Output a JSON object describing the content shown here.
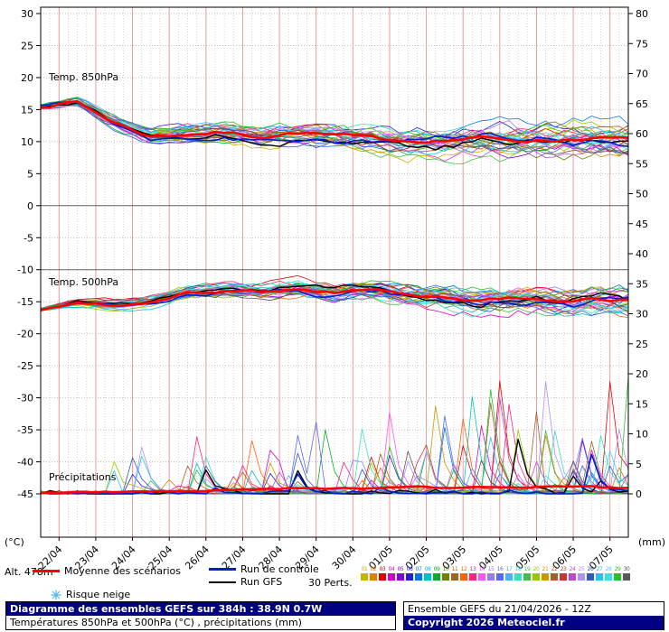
{
  "meta": {
    "alt_label": "Alt. 478m"
  },
  "legend": {
    "mean_label": "Moyenne des scénarios",
    "control_label": "Run de contrôle",
    "gfs_label": "Run GFS",
    "perts_label": "30 Perts.",
    "snow_label": "Risque neige",
    "mean_color": "#ff0000",
    "control_color": "#0020c8",
    "gfs_color": "#000000",
    "snow_icon_color": "#55b8f0",
    "pert_numbers": [
      "01",
      "02",
      "03",
      "04",
      "05",
      "06",
      "07",
      "08",
      "09",
      "10",
      "11",
      "12",
      "13",
      "14",
      "15",
      "16",
      "17",
      "18",
      "19",
      "20",
      "21",
      "22",
      "23",
      "24",
      "25",
      "26",
      "27",
      "28",
      "29",
      "30"
    ],
    "pert_colors": [
      "#c8b400",
      "#e08000",
      "#e00000",
      "#d800c8",
      "#8800e0",
      "#2020d0",
      "#0078e8",
      "#00c0c8",
      "#00b028",
      "#6e8400",
      "#a06420",
      "#ff6000",
      "#ff2080",
      "#ff50ff",
      "#9878ff",
      "#5868ff",
      "#48b0ff",
      "#38e0c0",
      "#40c048",
      "#98c800",
      "#c89800",
      "#aa5c2c",
      "#d03038",
      "#c048c8",
      "#ae90ff",
      "#3058c8",
      "#28c0f8",
      "#38e0e8",
      "#28c028",
      "#585858"
    ]
  },
  "footer": {
    "title": "Diagramme des ensembles GEFS sur 384h : 38.9N 0.7W",
    "subtitle": "Températures 850hPa et 500hPa (°C) , précipitations (mm)",
    "run_info": "Ensemble GEFS du 21/04/2026 - 12Z",
    "copyright": "Copyright 2026 Meteociel.fr",
    "bar_color": "#000080"
  },
  "chart_data": {
    "type": "line",
    "title": "Diagramme des ensembles GEFS sur 384h : 38.9N 0.7W",
    "x_labels": [
      "22/04",
      "23/04",
      "24/04",
      "25/04",
      "26/04",
      "27/04",
      "28/04",
      "29/04",
      "30/04",
      "01/05",
      "02/05",
      "03/05",
      "04/05",
      "05/05",
      "06/05",
      "07/05"
    ],
    "y_left_label": "(°C)",
    "y_right_label": "(mm)",
    "y_left_ticks": [
      30,
      25,
      20,
      15,
      10,
      5,
      0,
      -5,
      -10,
      -15,
      -20,
      -25,
      -30,
      -35,
      -40,
      -45
    ],
    "y_right_ticks": [
      80,
      75,
      70,
      65,
      60,
      55,
      50,
      45,
      40,
      35,
      30,
      25,
      20,
      15,
      10,
      5,
      0
    ],
    "n_members": 30,
    "sections": [
      {
        "label": "Temp. 850hPa",
        "unit": "°C",
        "mean_anchors": [
          15.5,
          16.2,
          13.0,
          10.8,
          11.2,
          11.4,
          10.8,
          11.4,
          11.0,
          10.6,
          10.2,
          10.2,
          10.6,
          10.2,
          10.2,
          10.6,
          10.4
        ],
        "spread_start": 0.4,
        "spread_end": 1.9
      },
      {
        "label": "Temp. 500hPa",
        "unit": "°C",
        "mean_anchors": [
          -16.2,
          -15.2,
          -15.6,
          -15.0,
          -13.6,
          -13.2,
          -13.4,
          -13.0,
          -13.6,
          -13.2,
          -13.8,
          -14.4,
          -14.8,
          -14.4,
          -14.8,
          -14.6,
          -14.8
        ],
        "spread_start": 0.3,
        "spread_end": 1.5
      },
      {
        "label": "Précipitations",
        "unit": "mm",
        "mean_anchors": [
          0.2,
          0.2,
          0.3,
          0.4,
          0.4,
          0.5,
          0.8,
          1.0,
          0.9,
          1.0,
          1.2,
          1.0,
          1.1,
          1.0,
          1.2,
          1.1,
          1.0
        ],
        "spike_max": 26
      }
    ]
  }
}
